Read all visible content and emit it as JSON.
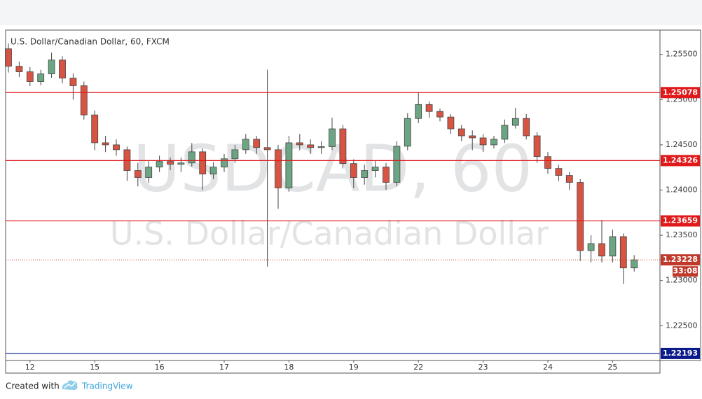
{
  "chart_data": {
    "type": "candlestick",
    "title": "U.S. Dollar/Canadian Dollar, 60, FXCM",
    "watermark": "USDCAD, 60",
    "watermark_subtitle": "U.S. Dollar/Canadian Dollar",
    "categories": [
      null,
      null,
      "12",
      null,
      null,
      null,
      null,
      null,
      "15",
      null,
      null,
      null,
      null,
      null,
      "16",
      null,
      null,
      null,
      null,
      null,
      "17",
      null,
      null,
      null,
      null,
      null,
      "18",
      null,
      null,
      null,
      null,
      null,
      "19",
      null,
      null,
      null,
      null,
      null,
      "22",
      null,
      null,
      null,
      null,
      null,
      "23",
      null,
      null,
      null,
      null,
      null,
      "24",
      null,
      null,
      null,
      null,
      null,
      "25",
      null,
      null
    ],
    "open": [
      1.25562,
      1.25369,
      1.25308,
      1.252,
      1.25285,
      1.25438,
      1.25238,
      1.25154,
      1.24831,
      1.24523,
      1.245,
      1.24446,
      1.24216,
      1.24139,
      1.24254,
      1.24316,
      1.24285,
      1.243,
      1.24423,
      1.24177,
      1.24254,
      1.24346,
      1.24446,
      1.24562,
      1.2447,
      1.24446,
      1.24023,
      1.24523,
      1.245,
      1.2447,
      1.2448,
      1.24677,
      1.24293,
      1.24139,
      1.24216,
      1.24254,
      1.24085,
      1.24485,
      1.24792,
      1.24946,
      1.24869,
      1.24808,
      1.24677,
      1.246,
      1.24577,
      1.245,
      1.24562,
      1.24716,
      1.24792,
      1.246,
      1.2437,
      1.24239,
      1.24162,
      1.24085,
      1.23331,
      1.23408,
      1.2327,
      1.23485,
      1.23139
    ],
    "high": [
      1.2562,
      1.2542,
      1.2536,
      1.2533,
      1.2552,
      1.2548,
      1.2529,
      1.252,
      1.2488,
      1.246,
      1.2456,
      1.2448,
      1.243,
      1.2432,
      1.2438,
      1.2436,
      1.2436,
      1.2452,
      1.2446,
      1.2431,
      1.244,
      1.245,
      1.2462,
      1.246,
      1.25331,
      1.245,
      1.246,
      1.2462,
      1.2456,
      1.2454,
      1.248,
      1.2472,
      1.2434,
      1.2428,
      1.2432,
      1.243,
      1.2454,
      1.2485,
      1.25085,
      1.2498,
      1.249,
      1.2484,
      1.2472,
      1.2466,
      1.2462,
      1.246,
      1.2478,
      1.24908,
      1.2484,
      1.2464,
      1.2442,
      1.2428,
      1.242,
      1.2412,
      1.235,
      1.23669,
      1.23562,
      1.2352,
      1.2328
    ],
    "low": [
      1.253,
      1.2525,
      1.2515,
      1.2516,
      1.2524,
      1.2518,
      1.25,
      1.2478,
      1.2444,
      1.2442,
      1.2438,
      1.241,
      1.2404,
      1.2408,
      1.242,
      1.2422,
      1.242,
      1.2426,
      1.24,
      1.2412,
      1.242,
      1.243,
      1.244,
      1.244,
      1.23154,
      1.23793,
      1.2398,
      1.2444,
      1.244,
      1.244,
      1.2444,
      1.2424,
      1.2402,
      1.2406,
      1.2414,
      1.24,
      1.2404,
      1.2444,
      1.2474,
      1.248,
      1.2476,
      1.2462,
      1.2454,
      1.2444,
      1.2442,
      1.2446,
      1.2452,
      1.2468,
      1.2456,
      1.243,
      1.2418,
      1.241,
      1.24,
      1.23216,
      1.232,
      1.232,
      1.232,
      1.22962,
      1.231
    ],
    "close": [
      1.25369,
      1.25308,
      1.252,
      1.25285,
      1.25438,
      1.25238,
      1.25154,
      1.24831,
      1.24523,
      1.245,
      1.24446,
      1.24216,
      1.24139,
      1.24254,
      1.24316,
      1.24285,
      1.243,
      1.24423,
      1.24177,
      1.24254,
      1.24346,
      1.24446,
      1.24562,
      1.2447,
      1.24446,
      1.24023,
      1.24523,
      1.245,
      1.2447,
      1.2448,
      1.24677,
      1.24293,
      1.24139,
      1.24216,
      1.24254,
      1.24085,
      1.24485,
      1.24792,
      1.24946,
      1.24869,
      1.24808,
      1.24677,
      1.246,
      1.24577,
      1.245,
      1.24562,
      1.24716,
      1.24792,
      1.246,
      1.2437,
      1.24239,
      1.24162,
      1.24085,
      1.23331,
      1.23408,
      1.2327,
      1.23485,
      1.23139,
      1.23228
    ],
    "up_color": "#6ba583",
    "down_color": "#d75442",
    "ylim": [
      1.22115,
      1.25769
    ],
    "yticks": [
      {
        "value": 1.225,
        "label": "1.22500"
      },
      {
        "value": 1.23,
        "label": "1.23000"
      },
      {
        "value": 1.235,
        "label": "1.23500"
      },
      {
        "value": 1.24,
        "label": "1.24000"
      },
      {
        "value": 1.245,
        "label": "1.24500"
      },
      {
        "value": 1.25,
        "label": "1.25000"
      },
      {
        "value": 1.255,
        "label": "1.25500"
      }
    ],
    "grid": false,
    "levels": [
      {
        "value": 1.25078,
        "color": "#e0191b"
      },
      {
        "value": 1.24326,
        "color": "#e0191b"
      },
      {
        "value": 1.23659,
        "color": "#e0191b"
      },
      {
        "value": 1.22193,
        "color": "#0a1a8a"
      }
    ],
    "last_price": 1.23228,
    "last_price_color": "#c0392b",
    "countdown": "33:08"
  },
  "footer": {
    "created_with": "Created with",
    "brand": "TradingView"
  }
}
